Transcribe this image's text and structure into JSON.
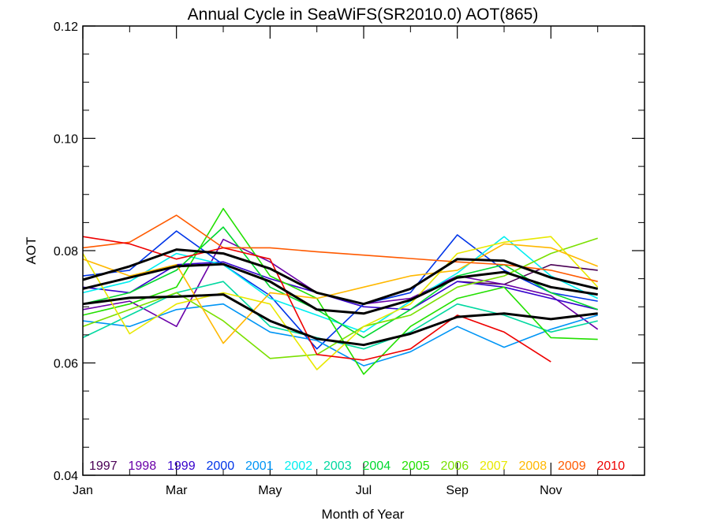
{
  "chart_data": {
    "type": "line",
    "title": "Annual Cycle in SeaWiFS(SR2010.0) AOT(865)",
    "xlabel": "Month of Year",
    "ylabel": "AOT",
    "xlim": [
      1,
      13
    ],
    "ylim": [
      0.04,
      0.12
    ],
    "x_ticks": [
      {
        "x": 1,
        "label": "Jan"
      },
      {
        "x": 3,
        "label": "Mar"
      },
      {
        "x": 5,
        "label": "May"
      },
      {
        "x": 7,
        "label": "Jul"
      },
      {
        "x": 9,
        "label": "Sep"
      },
      {
        "x": 11,
        "label": "Nov"
      }
    ],
    "y_ticks": [
      {
        "y": 0.04,
        "label": "0.04"
      },
      {
        "y": 0.06,
        "label": "0.06"
      },
      {
        "y": 0.08,
        "label": "0.08"
      },
      {
        "y": 0.1,
        "label": "0.10"
      },
      {
        "y": 0.12,
        "label": "0.12"
      }
    ],
    "grid": false,
    "legend_position": "bottom inside plot",
    "x": [
      1,
      2,
      3,
      4,
      5,
      6,
      7,
      8,
      9,
      10,
      11,
      12
    ],
    "series": [
      {
        "name": "1997",
        "color": "#4b0055",
        "values": [
          null,
          null,
          null,
          null,
          null,
          null,
          null,
          null,
          0.0745,
          0.074,
          0.0775,
          0.0765
        ]
      },
      {
        "name": "1998",
        "color": "#6a00a8",
        "values": [
          0.0695,
          0.071,
          0.0665,
          0.082,
          0.078,
          0.0725,
          0.0705,
          0.0715,
          0.0755,
          0.074,
          0.072,
          0.066
        ]
      },
      {
        "name": "1999",
        "color": "#3500cc",
        "values": [
          0.0735,
          0.0725,
          0.0775,
          0.078,
          0.075,
          0.0725,
          0.07,
          0.0695,
          0.0745,
          0.0735,
          0.0715,
          0.0695
        ]
      },
      {
        "name": "2000",
        "color": "#0035e8",
        "values": [
          0.0755,
          0.0765,
          0.0835,
          0.0775,
          0.072,
          0.0625,
          0.0705,
          0.0725,
          0.0828,
          0.0765,
          0.0725,
          0.071
        ]
      },
      {
        "name": "2001",
        "color": "#0095f5",
        "values": [
          0.0675,
          0.0665,
          0.0695,
          0.0705,
          0.0655,
          0.064,
          0.0595,
          0.062,
          0.0665,
          0.0628,
          0.066,
          0.0685
        ]
      },
      {
        "name": "2002",
        "color": "#00eef0",
        "values": [
          0.0725,
          0.0745,
          0.0795,
          0.0775,
          0.0715,
          0.0685,
          0.0655,
          0.071,
          0.076,
          0.0825,
          0.0755,
          0.0715
        ]
      },
      {
        "name": "2003",
        "color": "#00d8a0",
        "values": [
          0.0645,
          0.0685,
          0.0725,
          0.0745,
          0.0665,
          0.0645,
          0.0625,
          0.0655,
          0.0705,
          0.0685,
          0.0655,
          0.0675
        ]
      },
      {
        "name": "2004",
        "color": "#00d830",
        "values": [
          0.0705,
          0.0725,
          0.0765,
          0.0842,
          0.0735,
          0.0695,
          0.0645,
          0.0695,
          0.0755,
          0.0775,
          0.0725,
          0.0695
        ]
      },
      {
        "name": "2005",
        "color": "#22e000",
        "values": [
          0.0685,
          0.0705,
          0.0735,
          0.0875,
          0.0755,
          0.0715,
          0.058,
          0.0665,
          0.0715,
          0.0735,
          0.0645,
          0.0642
        ]
      },
      {
        "name": "2006",
        "color": "#7ae000",
        "values": [
          0.0665,
          0.0695,
          0.0725,
          0.0675,
          0.0608,
          0.0615,
          0.0665,
          0.0685,
          0.0735,
          0.0755,
          0.0795,
          0.0822
        ]
      },
      {
        "name": "2007",
        "color": "#e8e800",
        "values": [
          0.0795,
          0.0652,
          0.0705,
          0.0725,
          0.0705,
          0.0588,
          0.0665,
          0.0705,
          0.0795,
          0.0815,
          0.0825,
          0.0735
        ]
      },
      {
        "name": "2008",
        "color": "#ffb800",
        "values": [
          0.0785,
          0.0755,
          0.0775,
          0.0635,
          0.0725,
          0.0715,
          0.0735,
          0.0755,
          0.0765,
          0.0812,
          0.0805,
          0.0772
        ]
      },
      {
        "name": "2009",
        "color": "#ff5a00",
        "values": [
          0.0805,
          0.0815,
          0.0863,
          0.0805,
          0.0805,
          0.0798,
          0.0792,
          0.0786,
          0.078,
          0.0775,
          0.0765,
          0.0745
        ]
      },
      {
        "name": "2010",
        "color": "#ee0000",
        "values": [
          0.0825,
          0.0812,
          0.0785,
          0.0805,
          0.0785,
          0.0615,
          0.0605,
          0.0625,
          0.0685,
          0.0655,
          0.0602,
          null
        ]
      },
      {
        "name": "",
        "color": "#000000",
        "width": 3,
        "values": [
          0.0748,
          0.0772,
          0.0802,
          0.0795,
          0.0768,
          0.0725,
          0.0705,
          0.0732,
          0.0785,
          0.0782,
          0.0752,
          0.0732
        ]
      },
      {
        "name": "",
        "color": "#000000",
        "width": 3,
        "values": [
          0.0732,
          0.0752,
          0.0772,
          0.0776,
          0.0745,
          0.0695,
          0.0688,
          0.0712,
          0.0752,
          0.0762,
          0.0735,
          0.0722
        ]
      },
      {
        "name": "",
        "color": "#000000",
        "width": 3,
        "values": [
          0.0705,
          0.0716,
          0.0718,
          0.0722,
          0.0675,
          0.0643,
          0.0632,
          0.0652,
          0.0682,
          0.0688,
          0.0678,
          0.0688
        ]
      }
    ]
  }
}
